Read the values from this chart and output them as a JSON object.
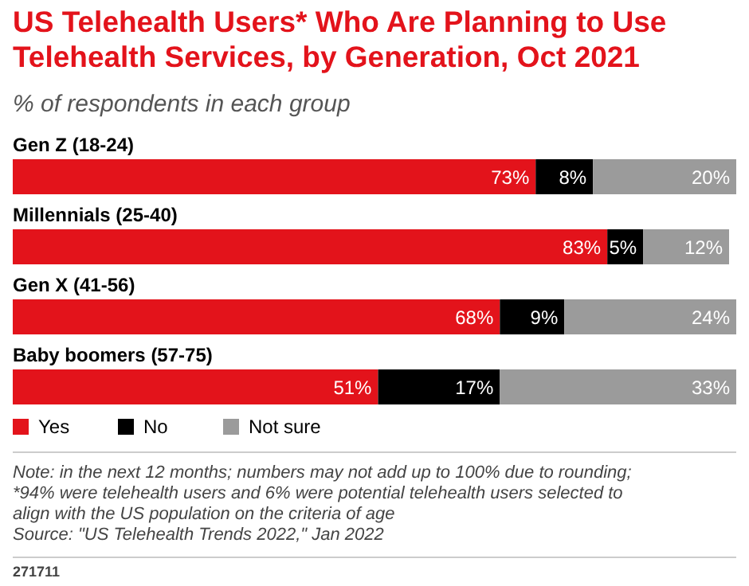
{
  "chart_data": {
    "type": "bar",
    "orientation": "horizontal",
    "stacked": true,
    "title": "US Telehealth Users* Who Are Planning to Use Telehealth Services, by Generation, Oct 2021",
    "subtitle": "% of respondents in each group",
    "categories": [
      "Gen Z (18-24)",
      "Millennials (25-40)",
      "Gen X (41-56)",
      "Baby boomers (57-75)"
    ],
    "series": [
      {
        "name": "Yes",
        "color": "#e3131b",
        "values": [
          73,
          83,
          68,
          51
        ],
        "value_labels": [
          "73%",
          "83%",
          "68%",
          "51%"
        ]
      },
      {
        "name": "No",
        "color": "#000000",
        "values": [
          8,
          5,
          9,
          17
        ],
        "value_labels": [
          "8%",
          "5%",
          "9%",
          "17%"
        ]
      },
      {
        "name": "Not sure",
        "color": "#9b9b9b",
        "values": [
          20,
          12,
          24,
          33
        ],
        "value_labels": [
          "20%",
          "12%",
          "24%",
          "33%"
        ]
      }
    ],
    "xlim": [
      0,
      101
    ],
    "legend": "bottom left",
    "annotations": [
      "Note: in the next 12 months; numbers may not add up to 100% due to rounding; *94% were telehealth users and 6% were potential telehealth users selected to align with the US population on the criteria of age",
      "Source: \"US Telehealth Trends 2022,\" Jan 2022",
      "271711"
    ]
  }
}
